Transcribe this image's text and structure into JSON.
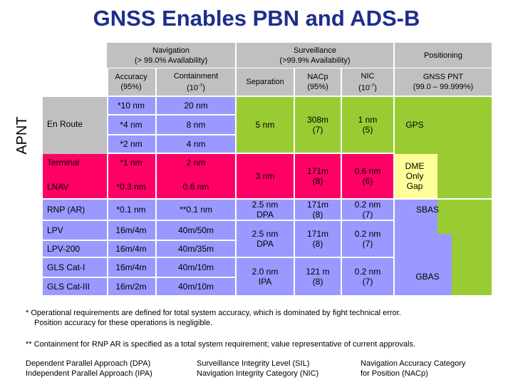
{
  "title": "GNSS Enables PBN and ADS-B",
  "side_label": "APNT",
  "headers": {
    "navigation": "Navigation",
    "navigation_avail": "(> 99.0% Availability)",
    "surveillance": "Surveillance",
    "surveillance_avail": "(>99.9% Availability)",
    "positioning": "Positioning",
    "accuracy": "Accuracy",
    "accuracy_sub": "(95%)",
    "containment": "Containment",
    "containment_sub": "(10",
    "separation": "Separation",
    "nacp": "NACp",
    "nacp_sub": "(95%)",
    "nic": "NIC",
    "nic_sub": "(10",
    "gnss_pnt": "GNSS PNT",
    "gnss_pnt_sub": "(99.0 – 99.999%)",
    "exp": "-7",
    "close_paren": ")"
  },
  "rows": [
    {
      "name": "En Route",
      "acc1": "*10 nm",
      "con1": "20 nm",
      "acc2": "*4 nm",
      "con2": "8 nm",
      "acc3": "*2 nm",
      "con3": "4 nm"
    },
    {
      "name": "Terminal",
      "acc": "*1 nm",
      "con": "2 nm"
    },
    {
      "name": "LNAV",
      "acc": "*0.3 nm",
      "con": "0.6 nm"
    },
    {
      "name": "RNP (AR)",
      "acc": "*0.1 nm",
      "con": "**0.1 nm"
    },
    {
      "name": "LPV",
      "acc": "16m/4m",
      "con": "40m/50m"
    },
    {
      "name": "LPV-200",
      "acc": "16m/4m",
      "con": "40m/35m"
    },
    {
      "name": "GLS Cat-I",
      "acc": "16m/4m",
      "con": "40m/10m"
    },
    {
      "name": "GLS Cat-III",
      "acc": "16m/2m",
      "con": "40m/10m"
    }
  ],
  "surv": [
    {
      "sep": "5 nm",
      "nacp": "308m\n(7)",
      "nic": "1 nm\n(5)"
    },
    {
      "sep": "3 nm",
      "nacp": "171m\n(8)",
      "nic": "0.6 nm\n(6)"
    },
    {
      "sep": "2.5 nm\nDPA",
      "nacp": "171m\n(8)",
      "nic": "0.2 nm\n(7)"
    },
    {
      "sep": "2.5 nm\nDPA",
      "nacp": "171m\n(8)",
      "nic": "0.2 nm\n(7)"
    },
    {
      "sep": "2.0 nm\nIPA",
      "nacp": "121 m\n(8)",
      "nic": "0.2 nm\n(7)"
    }
  ],
  "positioning": {
    "gps": "GPS",
    "dme": "DME\nOnly\nGap",
    "sbas": "SBAS",
    "gbas": "GBAS"
  },
  "notes": {
    "n1a": "*  Operational requirements are defined for total system accuracy, which is dominated by fight technical error.",
    "n1b": "Position accuracy for these operations is negligible.",
    "n2": "** Containment for RNP AR is specified as a total system requirement; value representative of current approvals."
  },
  "legend": {
    "col1a": "Dependent Parallel Approach (DPA)",
    "col1b": "Independent Parallel Approach (IPA)",
    "col2a": "Surveillance Integrity Level (SIL)",
    "col2b": "Navigation Integrity Category (NIC)",
    "col3a": "Navigation Accuracy Category",
    "col3b": "for Position (NACp)"
  },
  "colors": {
    "title": "#1c2e8c",
    "grey": "#c0c0c0",
    "lightgrey": "#d9d9d9",
    "blue": "#9999ff",
    "magenta": "#ff0066",
    "green": "#99cc33",
    "yellow": "#ffff99"
  }
}
